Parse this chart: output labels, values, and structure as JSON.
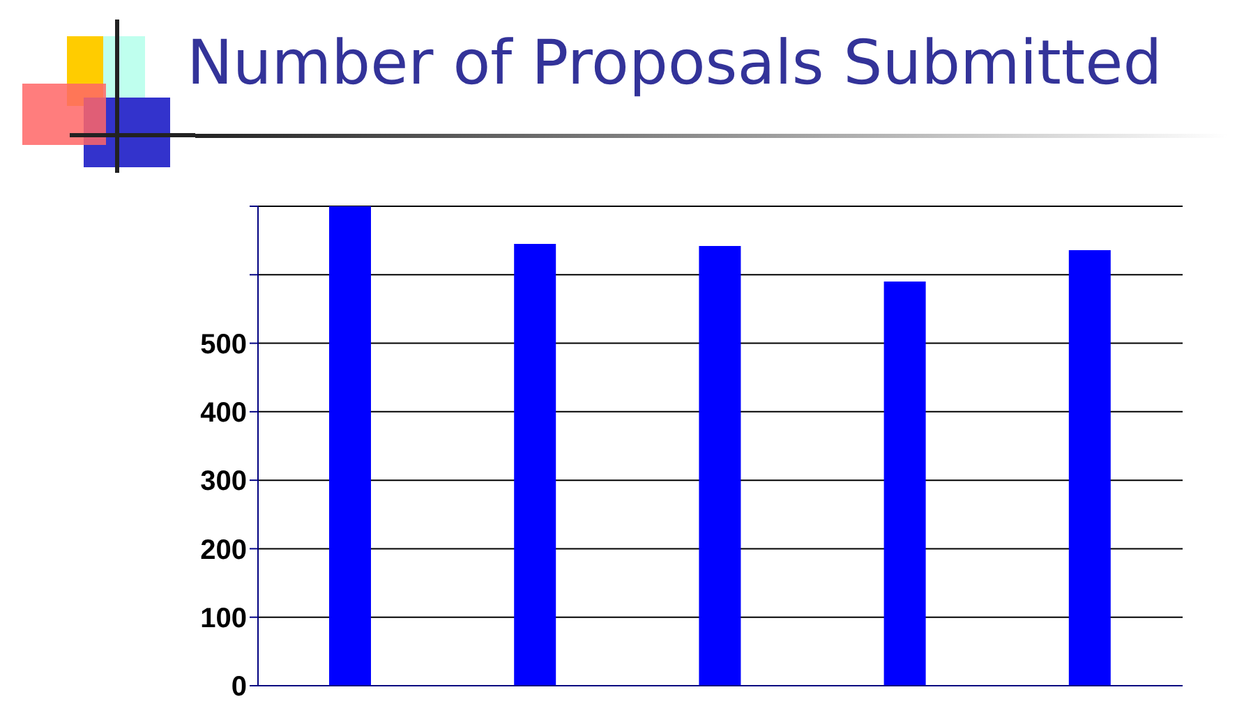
{
  "chart_data": {
    "type": "bar",
    "title": "Number of Proposals Submitted",
    "categories": [
      null,
      null,
      null,
      null,
      null
    ],
    "values": [
      700,
      645,
      642,
      590,
      636
    ],
    "color": "#0000ff",
    "ylim": [
      0,
      700
    ],
    "yticks": [
      0,
      100,
      200,
      300,
      400,
      500,
      {
        "value": 600,
        "label": null
      },
      {
        "value": 700,
        "label": null
      }
    ],
    "grid": "y",
    "tick_labels": "y"
  }
}
